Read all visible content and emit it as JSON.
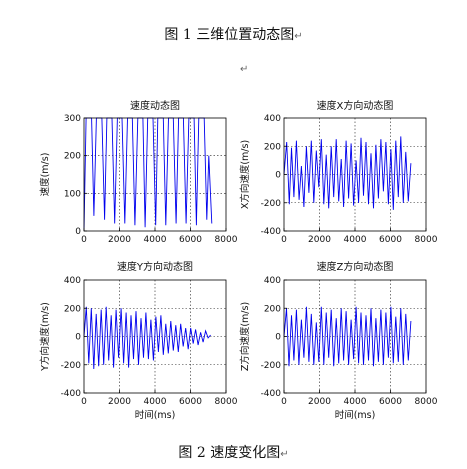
{
  "doc": {
    "caption_top": "图 1  三维位置动态图",
    "caption_bottom": "图 2  速度变化图",
    "para_mark": "↵",
    "line_mark": "↵",
    "series_color": "#0000ee"
  },
  "chart_data": [
    {
      "type": "line",
      "title": "速度动态图",
      "xlabel": "",
      "ylabel": "速度(m/s)",
      "xlim": [
        0,
        8000
      ],
      "ylim": [
        0,
        300
      ],
      "xticks": [
        "0",
        "2000",
        "4000",
        "6000",
        "8000"
      ],
      "yticks": [
        "0",
        "100",
        "200",
        "300"
      ],
      "grid": true,
      "series": [
        {
          "x": [
            0,
            120,
            270,
            430,
            560,
            700,
            860,
            1010,
            1160,
            1290,
            1420,
            1580,
            1730,
            1880,
            2000,
            2140,
            2300,
            2450,
            2600,
            2720,
            2870,
            3030,
            3170,
            3320,
            3440,
            3590,
            3750,
            3890,
            4040,
            4160,
            4310,
            4470,
            4610,
            4760,
            4880,
            5030,
            5190,
            5330,
            5480,
            5600,
            5750,
            5910,
            6050,
            6200,
            6330,
            6470,
            6630,
            6770,
            6920,
            7030,
            7200
          ],
          "y": [
            0,
            300,
            300,
            300,
            40,
            300,
            300,
            300,
            30,
            300,
            300,
            300,
            20,
            300,
            300,
            300,
            20,
            300,
            300,
            300,
            15,
            300,
            300,
            300,
            10,
            300,
            300,
            300,
            15,
            300,
            300,
            300,
            15,
            300,
            300,
            300,
            20,
            300,
            300,
            300,
            20,
            300,
            300,
            300,
            15,
            300,
            300,
            300,
            30,
            200,
            20
          ]
        }
      ]
    },
    {
      "type": "line",
      "title": "速度X方向动态图",
      "xlabel": "",
      "ylabel": "X方向速度(m/s)",
      "xlim": [
        0,
        8000
      ],
      "ylim": [
        -400,
        400
      ],
      "xticks": [
        "0",
        "2000",
        "4000",
        "6000",
        "8000"
      ],
      "yticks": [
        "-400",
        "-200",
        "0",
        "200",
        "400"
      ],
      "grid": true,
      "series": [
        {
          "x": [
            0,
            150,
            300,
            420,
            560,
            700,
            850,
            980,
            1120,
            1260,
            1400,
            1540,
            1680,
            1820,
            1960,
            2100,
            2240,
            2380,
            2520,
            2660,
            2800,
            2940,
            3080,
            3220,
            3360,
            3500,
            3640,
            3780,
            3920,
            4060,
            4200,
            4340,
            4480,
            4620,
            4760,
            4900,
            5040,
            5180,
            5320,
            5460,
            5600,
            5740,
            5880,
            6020,
            6160,
            6300,
            6440,
            6580,
            6720,
            6860,
            7000,
            7150
          ],
          "y": [
            0,
            230,
            -210,
            190,
            -160,
            240,
            -180,
            60,
            -230,
            200,
            -130,
            240,
            -200,
            170,
            -90,
            250,
            -210,
            140,
            -240,
            200,
            -160,
            250,
            -190,
            110,
            -230,
            240,
            -170,
            220,
            -220,
            100,
            -200,
            260,
            -150,
            230,
            -210,
            150,
            -240,
            210,
            -170,
            250,
            -120,
            230,
            -210,
            180,
            -250,
            240,
            -160,
            270,
            -200,
            160,
            -190,
            80
          ]
        }
      ]
    },
    {
      "type": "line",
      "title": "速度Y方向动态图",
      "xlabel": "时间(ms)",
      "ylabel": "Y方向速度(m/s)",
      "xlim": [
        0,
        8000
      ],
      "ylim": [
        -400,
        400
      ],
      "xticks": [
        "0",
        "2000",
        "4000",
        "6000",
        "8000"
      ],
      "yticks": [
        "-400",
        "-200",
        "0",
        "200",
        "400"
      ],
      "grid": true,
      "series": [
        {
          "x": [
            0,
            130,
            270,
            410,
            550,
            690,
            830,
            970,
            1110,
            1250,
            1390,
            1530,
            1670,
            1810,
            1950,
            2090,
            2230,
            2370,
            2510,
            2650,
            2790,
            2930,
            3070,
            3210,
            3350,
            3490,
            3630,
            3770,
            3910,
            4050,
            4190,
            4330,
            4470,
            4610,
            4750,
            4890,
            5030,
            5170,
            5310,
            5450,
            5590,
            5730,
            5870,
            6010,
            6150,
            6290,
            6430,
            6570,
            6710,
            6850,
            6990,
            7130
          ],
          "y": [
            0,
            210,
            -190,
            200,
            -230,
            160,
            -210,
            190,
            -200,
            210,
            -170,
            150,
            -220,
            190,
            -150,
            200,
            -190,
            170,
            -220,
            150,
            -160,
            180,
            -200,
            130,
            -150,
            170,
            -160,
            120,
            -170,
            140,
            -110,
            150,
            -130,
            90,
            -120,
            110,
            -100,
            80,
            -110,
            90,
            -70,
            60,
            -90,
            60,
            -50,
            50,
            -60,
            30,
            -40,
            40,
            -10,
            10
          ]
        }
      ]
    },
    {
      "type": "line",
      "title": "速度Z方向动态图",
      "xlabel": "时间(ms)",
      "ylabel": "Z方向速度(m/s)",
      "xlim": [
        0,
        8000
      ],
      "ylim": [
        -400,
        400
      ],
      "xticks": [
        "0",
        "2000",
        "4000",
        "6000",
        "8000"
      ],
      "yticks": [
        "-400",
        "-200",
        "0",
        "200",
        "400"
      ],
      "grid": true,
      "series": [
        {
          "x": [
            0,
            140,
            280,
            420,
            560,
            700,
            840,
            980,
            1120,
            1260,
            1400,
            1540,
            1680,
            1820,
            1960,
            2100,
            2240,
            2380,
            2520,
            2660,
            2800,
            2940,
            3080,
            3220,
            3360,
            3500,
            3640,
            3780,
            3920,
            4060,
            4200,
            4340,
            4480,
            4620,
            4760,
            4900,
            5040,
            5180,
            5320,
            5460,
            5600,
            5740,
            5880,
            6020,
            6160,
            6300,
            6440,
            6580,
            6720,
            6860,
            7000,
            7150
          ],
          "y": [
            0,
            200,
            -210,
            150,
            -170,
            190,
            -200,
            120,
            -150,
            210,
            -180,
            160,
            -200,
            100,
            -180,
            210,
            -200,
            170,
            -150,
            190,
            -210,
            130,
            -190,
            200,
            -170,
            180,
            -200,
            120,
            -160,
            210,
            -190,
            170,
            -200,
            150,
            -170,
            200,
            -210,
            130,
            -180,
            190,
            -200,
            170,
            -150,
            210,
            -190,
            140,
            -180,
            200,
            -200,
            160,
            -170,
            110
          ]
        }
      ]
    }
  ]
}
